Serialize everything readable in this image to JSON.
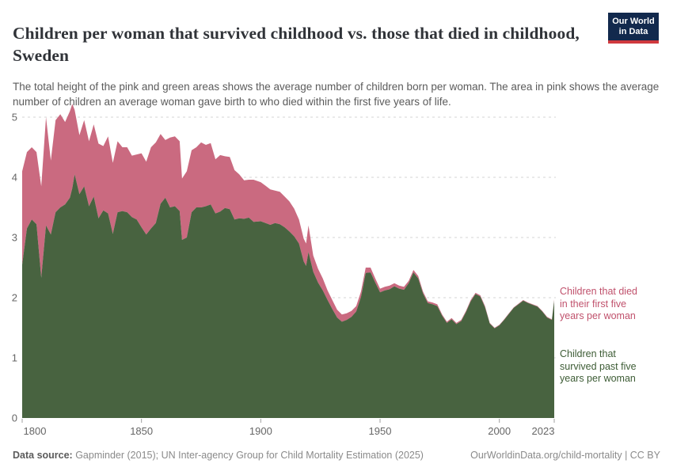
{
  "header": {
    "title": "Children per woman that survived childhood vs. those that died in childhood, Sweden",
    "subtitle": "The total height of the pink and green areas shows the average number of children born per woman. The area in pink shows the average number of children an average woman gave birth to who died within the first five years of life.",
    "logo": {
      "line1": "Our World",
      "line2": "in Data",
      "bg_color": "#12294d",
      "stripe_color": "#d0393e"
    }
  },
  "annotations": {
    "died_label": "Children that died\nin their first five\nyears per woman",
    "survived_label": "Children that\nsurvived past five\nyears per woman",
    "died_label_color": "#c0516c",
    "survived_label_color": "#3d5c35"
  },
  "footer": {
    "source_prefix": "Data source:",
    "source_text": " Gapminder (2015); UN Inter-agency Group for Child Mortality Estimation (2025)",
    "link_text": "OurWorldinData.org/child-mortality | CC BY"
  },
  "chart_data": {
    "type": "area",
    "stacked": true,
    "title": "Children per woman that survived childhood vs. those that died in childhood, Sweden",
    "xlabel": "",
    "ylabel": "",
    "ylim": [
      0,
      5.3
    ],
    "yticks": [
      0,
      1,
      2,
      3,
      4,
      5
    ],
    "xticks": [
      1800,
      1850,
      1900,
      1950,
      2000,
      2023
    ],
    "grid": "dashed-horizontal",
    "legend_position": "right-of-plot",
    "series_meta": [
      {
        "name": "Children that survived past five years per woman",
        "fill_color": "#486340",
        "stack_order": 0
      },
      {
        "name": "Children that died in their first five years per woman",
        "fill_color": "#ca6a80",
        "stack_order": 1
      }
    ],
    "points_format": [
      "year",
      "children_born_per_woman_total",
      "children_survived_past_five_years_per_woman"
    ],
    "note": "died_per_woman = total_born - survived",
    "points": [
      [
        1800,
        4.1,
        2.55
      ],
      [
        1802,
        4.42,
        3.15
      ],
      [
        1804,
        4.5,
        3.3
      ],
      [
        1806,
        4.42,
        3.22
      ],
      [
        1808,
        3.85,
        2.33
      ],
      [
        1810,
        5.0,
        3.2
      ],
      [
        1812,
        4.28,
        3.05
      ],
      [
        1814,
        4.95,
        3.42
      ],
      [
        1816,
        5.05,
        3.5
      ],
      [
        1818,
        4.92,
        3.55
      ],
      [
        1820,
        5.1,
        3.66
      ],
      [
        1821,
        5.22,
        3.82
      ],
      [
        1822,
        5.12,
        4.05
      ],
      [
        1824,
        4.7,
        3.72
      ],
      [
        1826,
        4.95,
        3.85
      ],
      [
        1828,
        4.6,
        3.52
      ],
      [
        1830,
        4.88,
        3.68
      ],
      [
        1832,
        4.56,
        3.32
      ],
      [
        1834,
        4.52,
        3.45
      ],
      [
        1836,
        4.68,
        3.4
      ],
      [
        1838,
        4.24,
        3.06
      ],
      [
        1840,
        4.6,
        3.42
      ],
      [
        1842,
        4.5,
        3.44
      ],
      [
        1844,
        4.5,
        3.42
      ],
      [
        1846,
        4.36,
        3.34
      ],
      [
        1848,
        4.38,
        3.3
      ],
      [
        1850,
        4.4,
        3.17
      ],
      [
        1852,
        4.26,
        3.05
      ],
      [
        1854,
        4.5,
        3.15
      ],
      [
        1856,
        4.58,
        3.24
      ],
      [
        1858,
        4.72,
        3.56
      ],
      [
        1860,
        4.62,
        3.66
      ],
      [
        1862,
        4.66,
        3.5
      ],
      [
        1864,
        4.68,
        3.52
      ],
      [
        1866,
        4.6,
        3.44
      ],
      [
        1867,
        3.98,
        2.96
      ],
      [
        1869,
        4.1,
        3.0
      ],
      [
        1871,
        4.45,
        3.42
      ],
      [
        1873,
        4.5,
        3.5
      ],
      [
        1875,
        4.58,
        3.5
      ],
      [
        1877,
        4.54,
        3.52
      ],
      [
        1879,
        4.57,
        3.55
      ],
      [
        1881,
        4.3,
        3.4
      ],
      [
        1883,
        4.37,
        3.43
      ],
      [
        1885,
        4.35,
        3.49
      ],
      [
        1887,
        4.34,
        3.47
      ],
      [
        1889,
        4.12,
        3.3
      ],
      [
        1891,
        4.05,
        3.32
      ],
      [
        1893,
        3.95,
        3.31
      ],
      [
        1895,
        3.96,
        3.33
      ],
      [
        1897,
        3.96,
        3.26
      ],
      [
        1900,
        3.92,
        3.27
      ],
      [
        1902,
        3.86,
        3.24
      ],
      [
        1904,
        3.8,
        3.21
      ],
      [
        1906,
        3.78,
        3.24
      ],
      [
        1908,
        3.76,
        3.22
      ],
      [
        1910,
        3.68,
        3.17
      ],
      [
        1912,
        3.6,
        3.1
      ],
      [
        1914,
        3.48,
        3.02
      ],
      [
        1916,
        3.3,
        2.9
      ],
      [
        1918,
        2.98,
        2.6
      ],
      [
        1919,
        2.9,
        2.53
      ],
      [
        1920,
        3.2,
        2.76
      ],
      [
        1922,
        2.7,
        2.43
      ],
      [
        1924,
        2.48,
        2.25
      ],
      [
        1926,
        2.32,
        2.12
      ],
      [
        1928,
        2.12,
        1.96
      ],
      [
        1930,
        1.96,
        1.81
      ],
      [
        1932,
        1.8,
        1.67
      ],
      [
        1934,
        1.72,
        1.6
      ],
      [
        1936,
        1.74,
        1.63
      ],
      [
        1938,
        1.78,
        1.68
      ],
      [
        1940,
        1.86,
        1.77
      ],
      [
        1942,
        2.1,
        2.01
      ],
      [
        1944,
        2.5,
        2.41
      ],
      [
        1946,
        2.5,
        2.42
      ],
      [
        1948,
        2.32,
        2.25
      ],
      [
        1950,
        2.15,
        2.09
      ],
      [
        1952,
        2.18,
        2.12
      ],
      [
        1954,
        2.2,
        2.14
      ],
      [
        1956,
        2.24,
        2.19
      ],
      [
        1958,
        2.2,
        2.15
      ],
      [
        1960,
        2.18,
        2.13
      ],
      [
        1962,
        2.28,
        2.24
      ],
      [
        1964,
        2.46,
        2.42
      ],
      [
        1966,
        2.36,
        2.32
      ],
      [
        1968,
        2.1,
        2.07
      ],
      [
        1970,
        1.94,
        1.91
      ],
      [
        1972,
        1.92,
        1.89
      ],
      [
        1974,
        1.89,
        1.86
      ],
      [
        1976,
        1.72,
        1.7
      ],
      [
        1978,
        1.6,
        1.58
      ],
      [
        1980,
        1.66,
        1.64
      ],
      [
        1982,
        1.58,
        1.56
      ],
      [
        1984,
        1.63,
        1.61
      ],
      [
        1986,
        1.78,
        1.76
      ],
      [
        1988,
        1.96,
        1.94
      ],
      [
        1990,
        2.08,
        2.06
      ],
      [
        1992,
        2.04,
        2.02
      ],
      [
        1994,
        1.86,
        1.84
      ],
      [
        1996,
        1.58,
        1.57
      ],
      [
        1998,
        1.5,
        1.49
      ],
      [
        2000,
        1.55,
        1.54
      ],
      [
        2002,
        1.64,
        1.63
      ],
      [
        2004,
        1.74,
        1.73
      ],
      [
        2006,
        1.84,
        1.83
      ],
      [
        2008,
        1.9,
        1.89
      ],
      [
        2010,
        1.96,
        1.95
      ],
      [
        2012,
        1.92,
        1.91
      ],
      [
        2014,
        1.89,
        1.88
      ],
      [
        2016,
        1.86,
        1.85
      ],
      [
        2018,
        1.78,
        1.77
      ],
      [
        2020,
        1.68,
        1.67
      ],
      [
        2022,
        1.64,
        1.63
      ],
      [
        2023,
        1.97,
        1.95
      ]
    ],
    "axis_colors": {
      "grid": "#d6d6d6",
      "tick": "#a0a0a0",
      "label": "#666666"
    }
  }
}
